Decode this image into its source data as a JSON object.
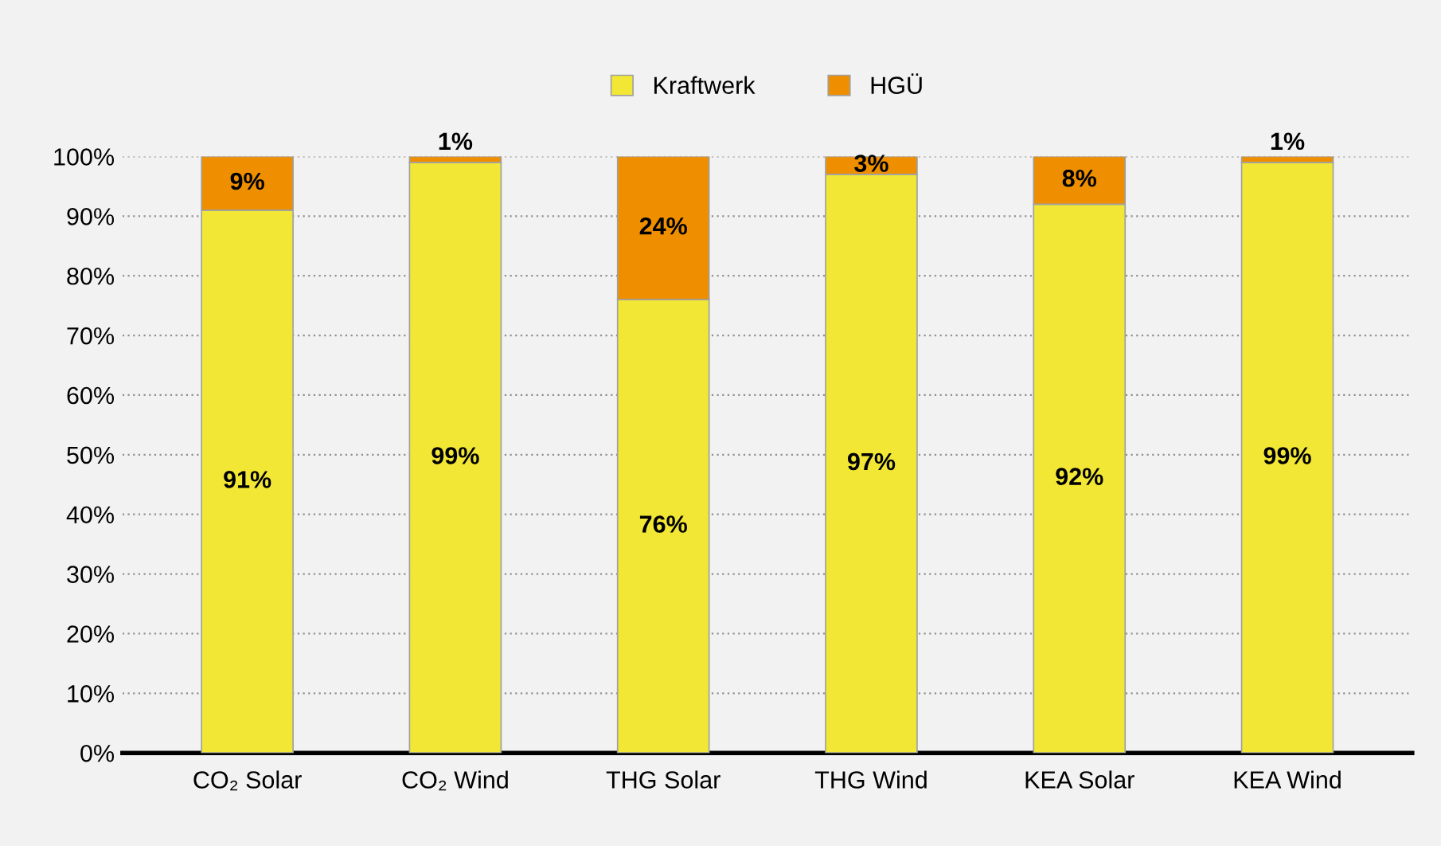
{
  "chart_data": {
    "type": "bar",
    "stacked": true,
    "categories": [
      "CO₂ Solar",
      "CO₂ Wind",
      "THG Solar",
      "THG Wind",
      "KEA Solar",
      "KEA Wind"
    ],
    "series": [
      {
        "name": "Kraftwerk",
        "color": "#f2e734",
        "values": [
          91,
          99,
          76,
          97,
          92,
          99
        ],
        "value_labels": [
          "91%",
          "99%",
          "76%",
          "97%",
          "92%",
          "99%"
        ]
      },
      {
        "name": "HGÜ",
        "color": "#ef8f00",
        "values": [
          9,
          1,
          24,
          3,
          8,
          1
        ],
        "value_labels": [
          "9%",
          "1%",
          "24%",
          "3%",
          "8%",
          "1%"
        ]
      }
    ],
    "ylim": [
      0,
      100
    ],
    "yticks": [
      {
        "value": 0,
        "label": "0%"
      },
      {
        "value": 10,
        "label": "10%"
      },
      {
        "value": 20,
        "label": "20%"
      },
      {
        "value": 30,
        "label": "30%"
      },
      {
        "value": 40,
        "label": "40%"
      },
      {
        "value": 50,
        "label": "50%"
      },
      {
        "value": 60,
        "label": "60%"
      },
      {
        "value": 70,
        "label": "70%"
      },
      {
        "value": 80,
        "label": "80%"
      },
      {
        "value": 90,
        "label": "90%"
      },
      {
        "value": 100,
        "label": "100%"
      }
    ],
    "grid": "y",
    "legend": "top"
  }
}
